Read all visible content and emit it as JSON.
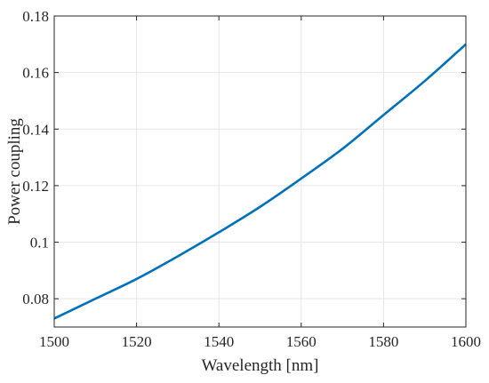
{
  "chart_data": {
    "type": "line",
    "title": "",
    "xlabel": "Wavelength [nm]",
    "ylabel": "Power coupling",
    "xlim": [
      1500,
      1600
    ],
    "ylim": [
      0.07,
      0.18
    ],
    "xticks": [
      1500,
      1520,
      1540,
      1560,
      1580,
      1600
    ],
    "xtick_labels": [
      "1500",
      "1520",
      "1540",
      "1560",
      "1580",
      "1600"
    ],
    "yticks": [
      0.08,
      0.1,
      0.12,
      0.14,
      0.16,
      0.18
    ],
    "ytick_labels": [
      "0.08",
      "0.1",
      "0.12",
      "0.14",
      "0.16",
      "0.18"
    ],
    "grid": true,
    "legend": "none",
    "series": [
      {
        "color": "#0072bd",
        "x": [
          1500,
          1510,
          1520,
          1530,
          1540,
          1550,
          1560,
          1570,
          1580,
          1590,
          1600
        ],
        "y": [
          0.073,
          0.08,
          0.087,
          0.095,
          0.1035,
          0.1125,
          0.1225,
          0.133,
          0.145,
          0.157,
          0.17
        ]
      }
    ]
  }
}
